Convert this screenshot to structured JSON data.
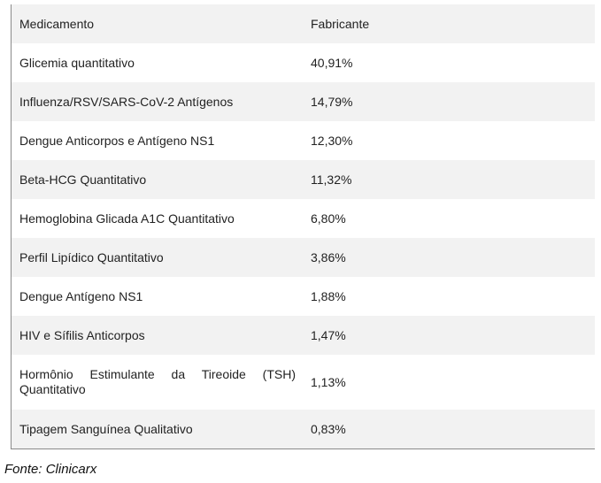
{
  "table": {
    "headers": [
      "Medicamento",
      "Fabricante"
    ],
    "rows": [
      {
        "name": "Glicemia quantitativo",
        "value": "40,91%"
      },
      {
        "name": "Influenza/RSV/SARS-CoV-2 Antígenos",
        "value": "14,79%"
      },
      {
        "name": "Dengue Anticorpos e Antígeno NS1",
        "value": "12,30%"
      },
      {
        "name": "Beta-HCG Quantitativo",
        "value": "11,32%"
      },
      {
        "name": "Hemoglobina Glicada A1C Quantitativo",
        "value": "6,80%"
      },
      {
        "name": "Perfil Lipídico Quantitativo",
        "value": "3,86%"
      },
      {
        "name": "Dengue Antígeno NS1",
        "value": "1,88%"
      },
      {
        "name": "HIV e Sífilis Anticorpos",
        "value": "1,47%"
      },
      {
        "name": "Hormônio Estimulante da Tireoide (TSH) Quantitativo",
        "value": "1,13%"
      },
      {
        "name": "Tipagem Sanguínea Qualitativo",
        "value": "0,83%"
      }
    ]
  },
  "caption": "Fonte: Clinicarx"
}
